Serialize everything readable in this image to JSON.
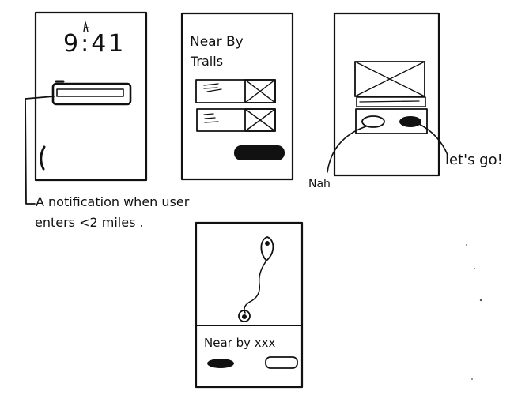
{
  "screen1": {
    "time": "9:41",
    "lock_glyph": "lock-icon"
  },
  "screen2": {
    "title_line1": "Near By",
    "title_line2": "Trails"
  },
  "screen3": {
    "nah_label": "Nah",
    "lets_go_label": "let's go!"
  },
  "screen4": {
    "caption": "Near by xxx"
  },
  "annotation": {
    "line1": "A notification when user",
    "line2": "enters <2 miles ."
  },
  "colors": {
    "ink": "#111111",
    "paper": "#ffffff"
  }
}
